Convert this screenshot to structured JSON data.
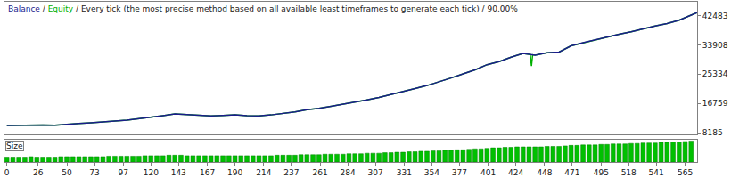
{
  "chart_data": [
    {
      "type": "line",
      "title": "Balance / Equity / Every tick (the most precise method based on all available least timeframes to generate each tick) / 90.00%",
      "x": [
        0,
        10,
        20,
        30,
        40,
        50,
        60,
        70,
        80,
        90,
        100,
        110,
        120,
        130,
        140,
        150,
        160,
        170,
        180,
        190,
        200,
        210,
        220,
        230,
        240,
        250,
        260,
        270,
        280,
        290,
        300,
        310,
        320,
        330,
        340,
        350,
        360,
        370,
        380,
        390,
        400,
        410,
        420,
        430,
        440,
        450,
        460,
        470,
        480,
        490,
        500,
        510,
        520,
        530,
        540,
        550,
        560,
        570,
        575
      ],
      "series": [
        {
          "name": "Balance",
          "color": "#1c1c8c",
          "line_style": "solid",
          "values": [
            10300,
            10350,
            10500,
            10450,
            10400,
            10700,
            10900,
            11100,
            11300,
            11600,
            11900,
            12300,
            12700,
            13200,
            13700,
            13500,
            13300,
            13100,
            13250,
            13400,
            13200,
            13100,
            13400,
            13800,
            14300,
            14900,
            15300,
            15900,
            16500,
            17200,
            17800,
            18500,
            19300,
            20200,
            21100,
            22000,
            23000,
            24200,
            25400,
            26600,
            28100,
            29000,
            30300,
            31400,
            30900,
            31600,
            31800,
            33600,
            34500,
            35300,
            36300,
            37000,
            37700,
            38600,
            39400,
            40100,
            41100,
            42600,
            43300
          ]
        },
        {
          "name": "Equity",
          "color": "#00b000",
          "line_style": "solid",
          "x": [
            0,
            10,
            20,
            30,
            40,
            50,
            60,
            70,
            80,
            90,
            100,
            110,
            120,
            130,
            140,
            150,
            160,
            170,
            180,
            190,
            200,
            210,
            220,
            230,
            240,
            250,
            260,
            270,
            280,
            290,
            300,
            310,
            320,
            330,
            340,
            350,
            360,
            370,
            380,
            390,
            400,
            410,
            420,
            430,
            436,
            437,
            438,
            440,
            450,
            460,
            470,
            480,
            490,
            500,
            510,
            520,
            530,
            540,
            550,
            560,
            570,
            575
          ],
          "values": [
            10300,
            10350,
            10500,
            10450,
            10400,
            10700,
            10900,
            11100,
            11300,
            11600,
            11900,
            12300,
            12700,
            13200,
            13700,
            13500,
            13300,
            13100,
            13250,
            13400,
            13200,
            13100,
            13400,
            13800,
            14300,
            14900,
            15300,
            15900,
            16500,
            17200,
            17800,
            18500,
            19300,
            20200,
            21100,
            22000,
            23000,
            24200,
            25400,
            26600,
            28100,
            29000,
            30300,
            31400,
            31100,
            27700,
            31000,
            30900,
            31600,
            31800,
            33600,
            34500,
            35300,
            36300,
            37000,
            37700,
            38600,
            39400,
            40100,
            41100,
            42600,
            43300
          ]
        }
      ],
      "xlim": [
        -2,
        575
      ],
      "ylim": [
        7600,
        46500
      ],
      "yticks": [
        8185,
        16759,
        25334,
        33908,
        42483
      ],
      "grid": false,
      "tick_labels": "y"
    },
    {
      "type": "bar",
      "title": "Size",
      "color": "#00c000",
      "x": [
        0,
        5,
        10,
        15,
        20,
        25,
        30,
        35,
        40,
        45,
        50,
        55,
        60,
        65,
        70,
        75,
        80,
        85,
        90,
        95,
        100,
        105,
        110,
        115,
        120,
        125,
        130,
        135,
        140,
        145,
        150,
        155,
        160,
        165,
        170,
        175,
        180,
        185,
        190,
        195,
        200,
        205,
        210,
        215,
        220,
        225,
        230,
        235,
        240,
        245,
        250,
        255,
        260,
        265,
        270,
        275,
        280,
        285,
        290,
        295,
        300,
        305,
        310,
        315,
        320,
        325,
        330,
        335,
        340,
        345,
        350,
        355,
        360,
        365,
        370,
        375,
        380,
        385,
        390,
        395,
        400,
        405,
        410,
        415,
        420,
        425,
        430,
        435,
        440,
        445,
        450,
        455,
        460,
        465,
        470,
        475,
        480,
        485,
        490,
        495,
        500,
        505,
        510,
        515,
        520,
        525,
        530,
        535,
        540,
        545,
        550,
        555,
        560,
        565,
        570
      ],
      "values": [
        0.1,
        0.1,
        0.1,
        0.1,
        0.11,
        0.1,
        0.1,
        0.1,
        0.1,
        0.11,
        0.11,
        0.11,
        0.11,
        0.11,
        0.11,
        0.11,
        0.11,
        0.12,
        0.12,
        0.12,
        0.12,
        0.12,
        0.12,
        0.13,
        0.13,
        0.13,
        0.13,
        0.14,
        0.14,
        0.14,
        0.13,
        0.13,
        0.13,
        0.13,
        0.13,
        0.13,
        0.13,
        0.13,
        0.13,
        0.13,
        0.13,
        0.13,
        0.13,
        0.13,
        0.13,
        0.14,
        0.14,
        0.14,
        0.14,
        0.15,
        0.15,
        0.15,
        0.15,
        0.16,
        0.16,
        0.16,
        0.16,
        0.17,
        0.17,
        0.17,
        0.18,
        0.18,
        0.18,
        0.19,
        0.19,
        0.2,
        0.2,
        0.21,
        0.21,
        0.22,
        0.22,
        0.23,
        0.23,
        0.24,
        0.24,
        0.25,
        0.25,
        0.26,
        0.27,
        0.27,
        0.28,
        0.29,
        0.29,
        0.3,
        0.3,
        0.31,
        0.31,
        0.31,
        0.31,
        0.31,
        0.32,
        0.32,
        0.32,
        0.33,
        0.34,
        0.34,
        0.35,
        0.35,
        0.35,
        0.36,
        0.36,
        0.37,
        0.37,
        0.37,
        0.38,
        0.38,
        0.39,
        0.39,
        0.39,
        0.4,
        0.4,
        0.41,
        0.41,
        0.42,
        0.43
      ],
      "xlim": [
        -2,
        575
      ],
      "ylim": [
        0,
        0.46
      ],
      "xticks": [
        0,
        26,
        50,
        73,
        97,
        120,
        143,
        167,
        190,
        214,
        237,
        261,
        284,
        307,
        331,
        354,
        377,
        401,
        424,
        448,
        471,
        495,
        518,
        541,
        565
      ],
      "grid": false,
      "tick_labels": "x"
    }
  ]
}
